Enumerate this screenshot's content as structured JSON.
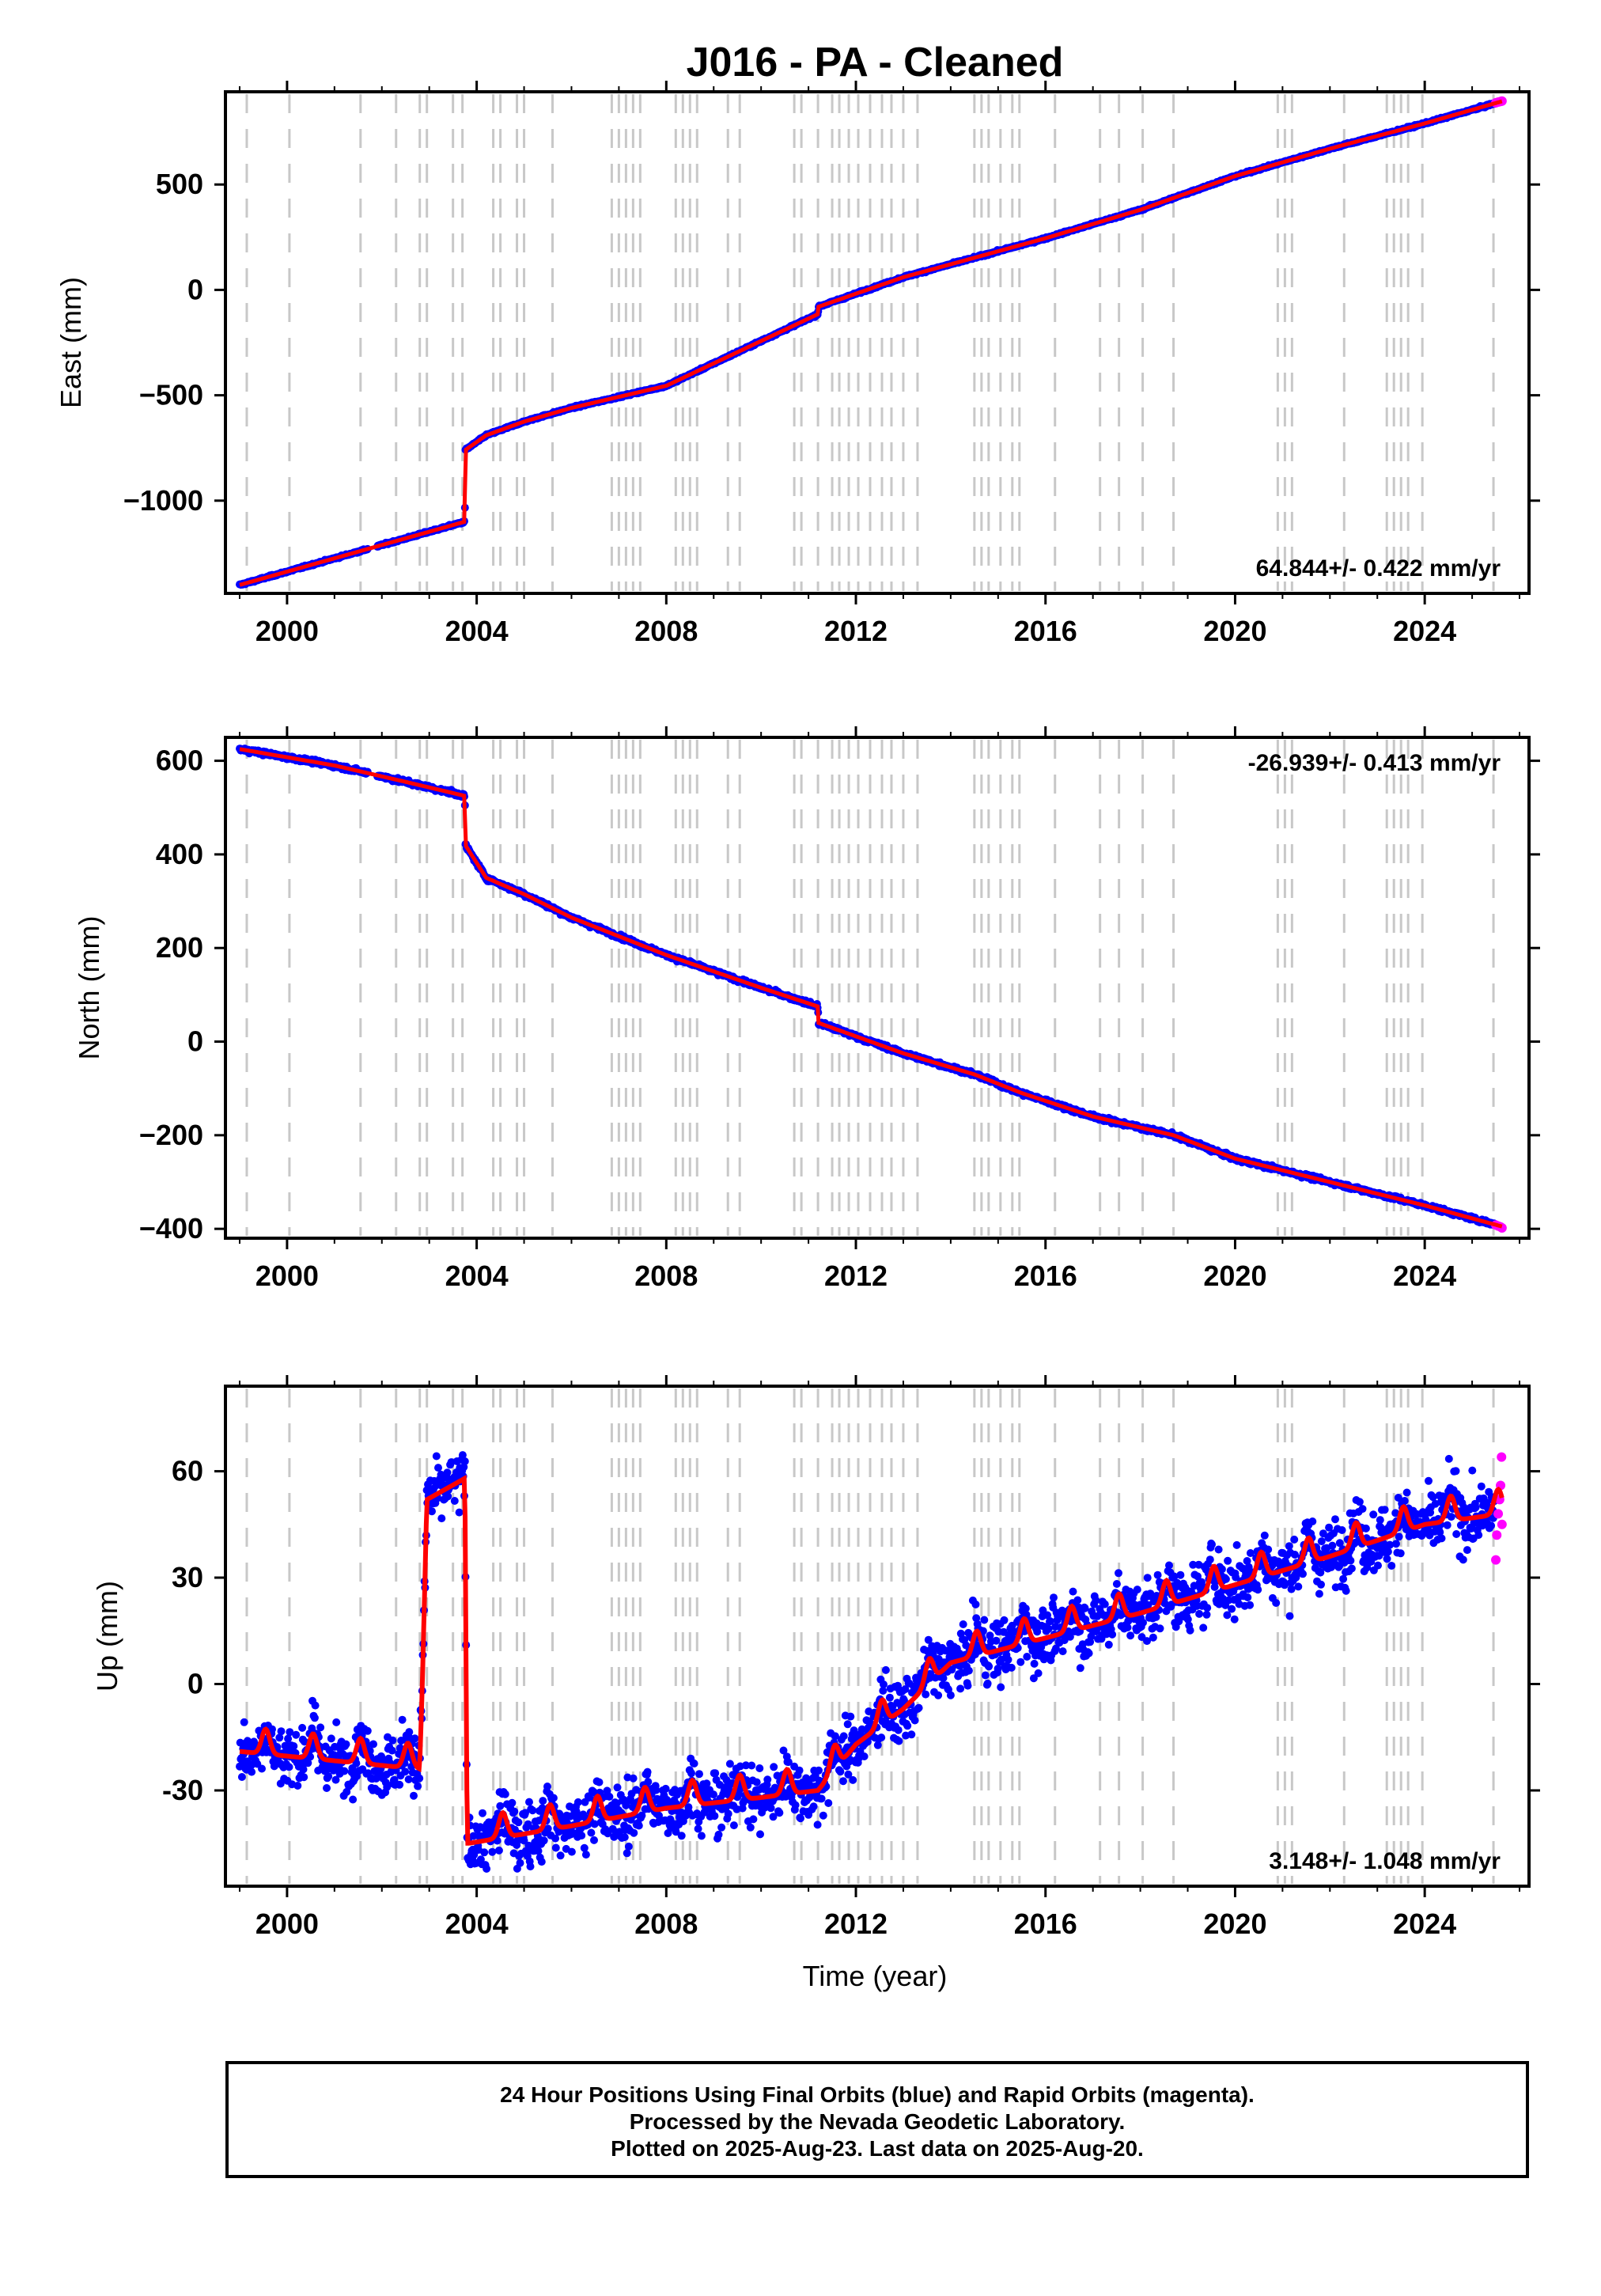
{
  "title": "J016  - PA - Cleaned",
  "xlabel": "Time (year)",
  "caption": {
    "line1": "24 Hour Positions Using Final Orbits (blue) and Rapid Orbits (magenta).",
    "line2": "Processed by the Nevada Geodetic Laboratory.",
    "line3": "Plotted on 2025-Aug-23. Last data on 2025-Aug-20."
  },
  "colors": {
    "final_orbits": "#0000ff",
    "rapid_orbits": "#ff00ff",
    "model": "#ff0000",
    "offset_lines": "#c8c8c8"
  },
  "chart_data": [
    {
      "type": "scatter",
      "name": "east",
      "ylabel": "East (mm)",
      "xlim": [
        1998.7,
        2026.2
      ],
      "ylim": [
        -1440,
        940
      ],
      "xticks": [
        2000,
        2004,
        2008,
        2012,
        2016,
        2020,
        2024
      ],
      "yticks": [
        500,
        0,
        -500,
        -1000
      ],
      "ytick_labels": [
        "500",
        "0",
        "−500",
        "−1000"
      ],
      "velocity": "64.844+/- 0.422 mm/yr",
      "velocity_position": "bottom-right",
      "model": [
        [
          1999.0,
          -1400
        ],
        [
          2003.75,
          -1100
        ],
        [
          2003.76,
          -760
        ],
        [
          2004.2,
          -690
        ],
        [
          2005.0,
          -625
        ],
        [
          2006.0,
          -560
        ],
        [
          2008.0,
          -455
        ],
        [
          2011.2,
          -115
        ],
        [
          2011.21,
          -80
        ],
        [
          2013.0,
          60
        ],
        [
          2016.0,
          245
        ],
        [
          2018.0,
          380
        ],
        [
          2020.0,
          540
        ],
        [
          2022.0,
          670
        ],
        [
          2024.0,
          790
        ],
        [
          2025.63,
          895
        ]
      ],
      "rapid": [
        [
          2025.5,
          888
        ],
        [
          2025.55,
          891
        ],
        [
          2025.6,
          894
        ],
        [
          2025.63,
          896
        ]
      ],
      "grid": false
    },
    {
      "type": "scatter",
      "name": "north",
      "ylabel": "North (mm)",
      "xlim": [
        1998.7,
        2026.2
      ],
      "ylim": [
        -420,
        650
      ],
      "xticks": [
        2000,
        2004,
        2008,
        2012,
        2016,
        2020,
        2024
      ],
      "yticks": [
        600,
        400,
        200,
        0,
        -200,
        -400
      ],
      "ytick_labels": [
        "600",
        "400",
        "200",
        "0",
        "−200",
        "−400"
      ],
      "velocity": "-26.939+/- 0.413 mm/yr",
      "velocity_position": "top-right",
      "model": [
        [
          1999.0,
          625
        ],
        [
          2001.0,
          590
        ],
        [
          2002.5,
          555
        ],
        [
          2003.75,
          525
        ],
        [
          2003.76,
          420
        ],
        [
          2004.2,
          350
        ],
        [
          2005.0,
          315
        ],
        [
          2006.0,
          265
        ],
        [
          2008.0,
          185
        ],
        [
          2010.0,
          115
        ],
        [
          2011.2,
          75
        ],
        [
          2011.21,
          40
        ],
        [
          2013.0,
          -25
        ],
        [
          2014.5,
          -70
        ],
        [
          2015.5,
          -110
        ],
        [
          2017.0,
          -160
        ],
        [
          2018.7,
          -200
        ],
        [
          2020.0,
          -250
        ],
        [
          2022.0,
          -300
        ],
        [
          2024.0,
          -350
        ],
        [
          2025.63,
          -395
        ]
      ],
      "rapid": [
        [
          2025.5,
          -392
        ],
        [
          2025.55,
          -394
        ],
        [
          2025.6,
          -396
        ],
        [
          2025.63,
          -398
        ]
      ],
      "grid": false
    },
    {
      "type": "scatter",
      "name": "up",
      "ylabel": "Up (mm)",
      "xlim": [
        1998.7,
        2026.2
      ],
      "ylim": [
        -57,
        84
      ],
      "xticks": [
        2000,
        2004,
        2008,
        2012,
        2016,
        2020,
        2024
      ],
      "yticks": [
        60,
        30,
        0,
        -30
      ],
      "ytick_labels": [
        "60",
        "30",
        "0",
        "-30"
      ],
      "velocity": "3.148+/- 1.048 mm/yr",
      "velocity_position": "bottom-right",
      "model_segments": [
        [
          1999.0,
          2002.8,
          -15
        ],
        [
          2002.8,
          2002.95,
          0
        ],
        [
          2002.95,
          2003.75,
          58
        ],
        [
          2003.75,
          2011.2,
          -40
        ],
        [
          2011.2,
          2025.63,
          0
        ]
      ],
      "model_trend": [
        [
          1999.0,
          -17
        ],
        [
          2002.8,
          -22
        ],
        [
          2002.85,
          -2
        ],
        [
          2002.95,
          52
        ],
        [
          2003.75,
          58
        ],
        [
          2003.8,
          -43
        ],
        [
          2006.0,
          -38
        ],
        [
          2008.0,
          -33
        ],
        [
          2010.0,
          -30
        ],
        [
          2011.2,
          -28
        ],
        [
          2012.0,
          -15
        ],
        [
          2013.0,
          -5
        ],
        [
          2014.0,
          8
        ],
        [
          2016.0,
          15
        ],
        [
          2018.0,
          22
        ],
        [
          2020.0,
          30
        ],
        [
          2022.0,
          38
        ],
        [
          2024.0,
          47
        ],
        [
          2025.63,
          50
        ]
      ],
      "rapid": [
        [
          2025.5,
          35
        ],
        [
          2025.52,
          42
        ],
        [
          2025.55,
          48
        ],
        [
          2025.58,
          52
        ],
        [
          2025.6,
          56
        ],
        [
          2025.62,
          64
        ],
        [
          2025.63,
          45
        ]
      ],
      "grid": false
    }
  ],
  "offset_epochs": [
    1999.15,
    2000.05,
    2001.55,
    2002.3,
    2002.8,
    2002.95,
    2003.5,
    2003.7,
    2004.35,
    2004.5,
    2004.85,
    2005.0,
    2005.6,
    2006.85,
    2007.0,
    2007.15,
    2007.3,
    2007.45,
    2008.2,
    2008.35,
    2008.5,
    2008.65,
    2009.3,
    2009.55,
    2010.7,
    2010.85,
    2011.2,
    2011.5,
    2011.65,
    2011.85,
    2012.05,
    2012.3,
    2012.55,
    2012.75,
    2013.0,
    2013.3,
    2014.5,
    2014.65,
    2014.8,
    2015.05,
    2015.3,
    2015.45,
    2016.2,
    2017.15,
    2017.55,
    2018.05,
    2018.7,
    2020.9,
    2021.05,
    2021.2,
    2022.3,
    2023.2,
    2023.35,
    2023.5,
    2023.65,
    2023.95,
    2025.45
  ]
}
